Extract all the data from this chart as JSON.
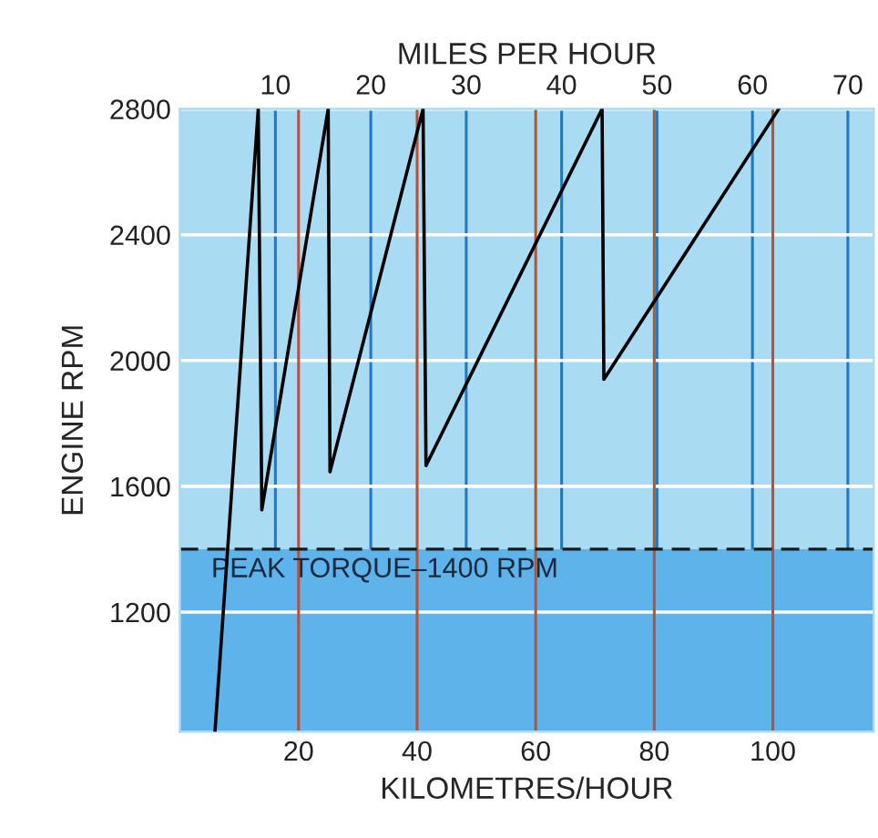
{
  "chart_data": {
    "type": "line",
    "xlabel": "KILOMETRES/HOUR",
    "x2label": "MILES PER HOUR",
    "ylabel": "ENGINE RPM",
    "series": [
      {
        "color": "#000000",
        "x": [
          5.9,
          13.2,
          13.8,
          25.0,
          25.3,
          41.0,
          41.5,
          71.2,
          71.5,
          101.0
        ],
        "values": [
          820,
          2800,
          1525,
          2800,
          1646,
          2800,
          1666,
          2800,
          1940,
          2800
        ]
      }
    ],
    "xlim": [
      0,
      117
    ],
    "xticks": [
      20,
      40,
      60,
      80,
      100
    ],
    "x2lim": [
      0,
      72.7
    ],
    "x2ticks": [
      10,
      20,
      30,
      40,
      50,
      60,
      70
    ],
    "ylim": [
      820,
      2800
    ],
    "yticks": [
      1200,
      1600,
      2000,
      2400,
      2800
    ],
    "ref_lines": [
      {
        "axis": "y",
        "value": 1400,
        "label": "PEAK TORQUE–1400 RPM",
        "line_style": "dashed",
        "color": "#1a1a1a"
      }
    ],
    "bands": [
      {
        "axis": "y",
        "from": 820,
        "to": 1400,
        "color": "#5db3ea"
      }
    ],
    "grid": true,
    "legend": false,
    "marker": "none",
    "line_style": "solid"
  }
}
